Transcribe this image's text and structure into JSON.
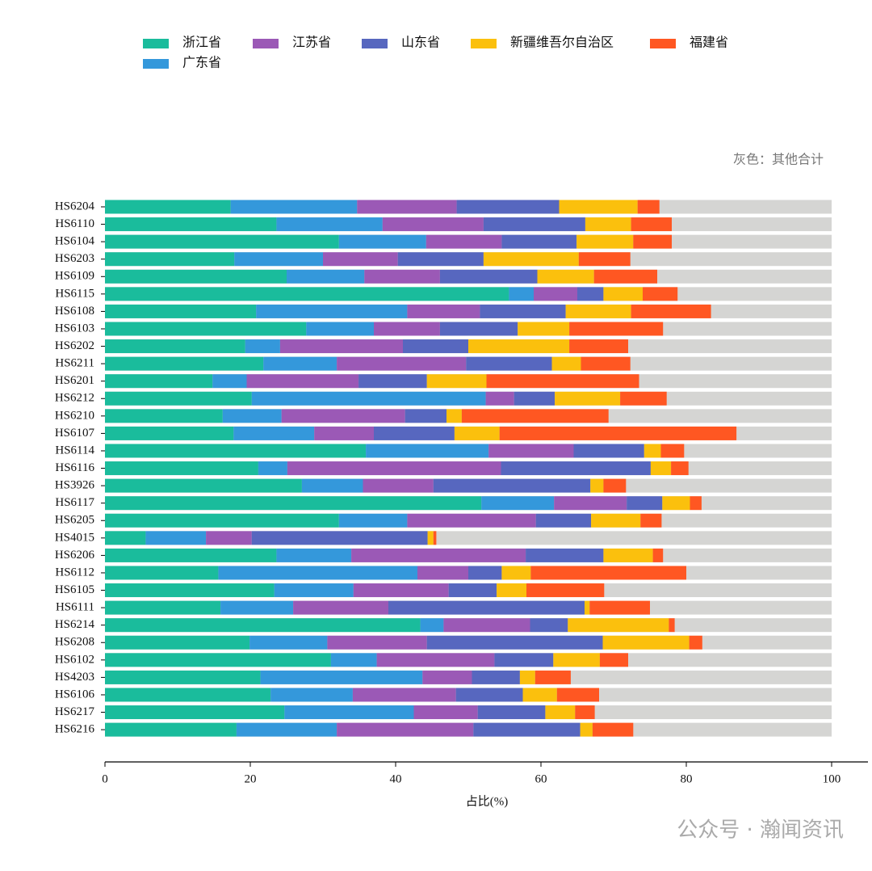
{
  "chart_data": {
    "type": "stacked-barh",
    "annotation": "灰色：其他合计",
    "xlabel": "占比(%)",
    "watermark": "公众号 · 瀚闻资讯",
    "categories": [
      "HS6204",
      "HS6110",
      "HS6104",
      "HS6203",
      "HS6109",
      "HS6115",
      "HS6108",
      "HS6103",
      "HS6202",
      "HS6211",
      "HS6201",
      "HS6212",
      "HS6210",
      "HS6107",
      "HS6114",
      "HS6116",
      "HS3926",
      "HS6117",
      "HS6205",
      "HS4015",
      "HS6206",
      "HS6112",
      "HS6105",
      "HS6111",
      "HS6214",
      "HS6208",
      "HS6102",
      "HS4203",
      "HS6106",
      "HS6217",
      "HS6216"
    ],
    "series": [
      {
        "name": "浙江省",
        "color": "#1abc9c",
        "values": [
          17.3,
          23.6,
          32.2,
          17.8,
          25.0,
          55.6,
          20.8,
          27.7,
          19.3,
          21.8,
          14.8,
          20.2,
          16.2,
          17.7,
          35.9,
          21.1,
          27.1,
          51.8,
          32.2,
          5.6,
          23.6,
          15.6,
          23.3,
          15.9,
          43.4,
          19.9,
          31.1,
          21.4,
          22.8,
          24.7,
          18.1
        ]
      },
      {
        "name": "广东省",
        "color": "#3498db",
        "values": [
          17.4,
          14.6,
          12.0,
          12.2,
          10.7,
          3.4,
          20.8,
          9.3,
          4.8,
          10.1,
          4.7,
          32.2,
          8.1,
          11.1,
          16.9,
          4.0,
          8.4,
          10.0,
          9.4,
          8.3,
          10.3,
          27.4,
          10.9,
          10.0,
          3.2,
          10.7,
          6.3,
          22.3,
          11.3,
          17.8,
          13.8
        ]
      },
      {
        "name": "江苏省",
        "color": "#9b59b6",
        "values": [
          13.7,
          13.9,
          10.4,
          10.3,
          10.4,
          6.0,
          10.0,
          9.1,
          16.9,
          17.8,
          15.4,
          3.9,
          17.0,
          8.2,
          11.7,
          29.4,
          9.7,
          10.0,
          17.7,
          6.3,
          24.0,
          7.0,
          13.1,
          13.1,
          11.9,
          13.7,
          16.2,
          6.8,
          14.2,
          8.8,
          18.8
        ]
      },
      {
        "name": "山东省",
        "color": "#5767bf",
        "values": [
          14.1,
          14.0,
          10.3,
          11.8,
          13.4,
          3.6,
          11.8,
          10.7,
          9.0,
          11.8,
          9.4,
          5.6,
          5.7,
          11.1,
          9.7,
          20.6,
          21.6,
          4.9,
          7.6,
          24.2,
          10.7,
          4.6,
          6.6,
          27.0,
          5.2,
          24.2,
          8.1,
          6.6,
          9.2,
          9.3,
          14.7
        ]
      },
      {
        "name": "新疆维吾尔自治区",
        "color": "#fbc00d",
        "values": [
          10.8,
          6.3,
          7.8,
          13.1,
          7.8,
          5.4,
          9.0,
          7.1,
          13.9,
          4.0,
          8.2,
          9.0,
          2.1,
          6.2,
          2.3,
          2.8,
          1.8,
          3.8,
          6.8,
          0.8,
          6.8,
          4.0,
          4.1,
          0.7,
          13.9,
          11.9,
          6.4,
          2.1,
          4.7,
          4.1,
          1.7
        ]
      },
      {
        "name": "福建省",
        "color": "#ff5722",
        "values": [
          3.0,
          5.6,
          5.3,
          7.1,
          8.7,
          4.8,
          11.0,
          12.9,
          8.1,
          6.8,
          21.0,
          6.4,
          20.2,
          32.6,
          3.2,
          2.4,
          3.1,
          1.6,
          2.9,
          0.4,
          1.4,
          21.4,
          10.7,
          8.3,
          0.8,
          1.8,
          3.9,
          4.9,
          5.8,
          2.7,
          5.6
        ]
      }
    ],
    "other_color": "#d5d5d3",
    "xlim": [
      0,
      105
    ],
    "xticks": [
      0,
      20,
      40,
      60,
      80,
      100
    ]
  }
}
